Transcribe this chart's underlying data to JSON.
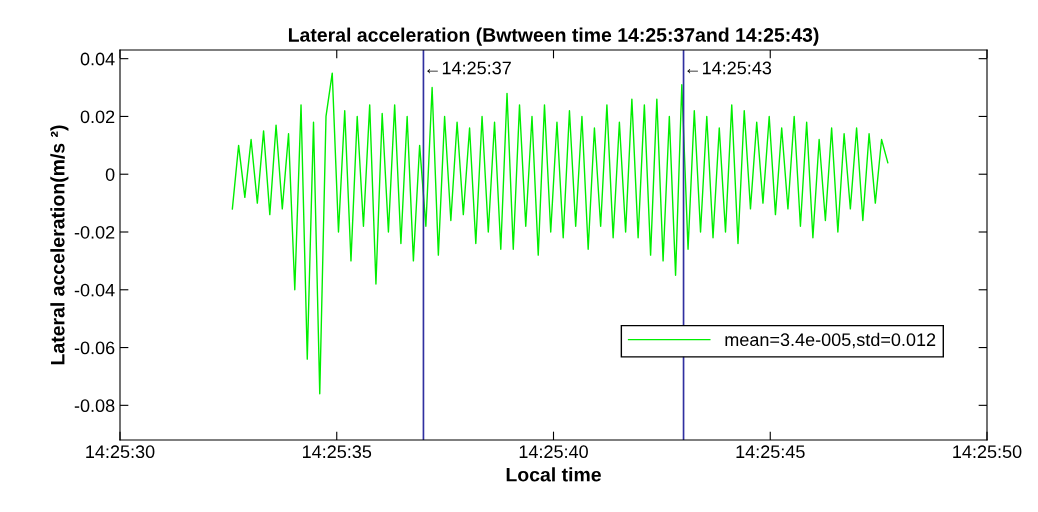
{
  "chart_data": {
    "type": "line",
    "title": "Lateral acceleration (Bwtween time 14:25:37and 14:25:43)",
    "xlabel": "Local time",
    "ylabel": "Lateral acceleration(m/s ²)",
    "x": [
      14.42572,
      14.42576,
      14.4258,
      14.42584,
      14.42588,
      14.42592,
      14.42596,
      14.426,
      14.42604,
      14.42608,
      14.42612,
      14.42616,
      14.4262,
      14.42624,
      14.42628,
      14.42632,
      14.42636,
      14.4264,
      14.42644,
      14.42648,
      14.42652,
      14.42656,
      14.4266,
      14.42664,
      14.42668,
      14.42672,
      14.42676,
      14.4268,
      14.42684,
      14.42688,
      14.42692,
      14.42696,
      14.427,
      14.42704,
      14.42708,
      14.42712,
      14.42716,
      14.4272,
      14.42724,
      14.42728,
      14.42732,
      14.42736,
      14.4274,
      14.42744,
      14.42748,
      14.42752,
      14.42756,
      14.4276,
      14.42764,
      14.42768,
      14.42772,
      14.42776,
      14.4278,
      14.42784,
      14.42788,
      14.42792,
      14.42796,
      14.428,
      14.42804,
      14.42808,
      14.42812,
      14.42816,
      14.4282,
      14.42824,
      14.42828,
      14.42832,
      14.42836,
      14.4284,
      14.42844,
      14.42848,
      14.42852,
      14.42856,
      14.4286,
      14.42864,
      14.42868,
      14.42872,
      14.42876,
      14.4288,
      14.42884,
      14.42888,
      14.42892,
      14.42896,
      14.429,
      14.42904,
      14.42908,
      14.42912,
      14.42916,
      14.4292,
      14.42924,
      14.42928,
      14.42932,
      14.42936,
      14.4294,
      14.42944,
      14.42948,
      14.42952,
      14.42956,
      14.4296,
      14.42964,
      14.42968,
      14.42972,
      14.42976,
      14.4298,
      14.42984,
      14.42988,
      14.42992
    ],
    "series": [
      {
        "name": "mean=3.4e-005,std=0.012",
        "color": "#00ee00",
        "values": [
          -0.012,
          0.01,
          -0.008,
          0.012,
          -0.01,
          0.015,
          -0.014,
          0.017,
          -0.012,
          0.014,
          -0.04,
          0.024,
          -0.064,
          0.018,
          -0.076,
          0.02,
          0.035,
          -0.02,
          0.022,
          -0.03,
          0.02,
          -0.018,
          0.024,
          -0.038,
          0.021,
          -0.02,
          0.024,
          -0.024,
          0.02,
          -0.03,
          0.01,
          -0.018,
          0.03,
          -0.028,
          0.02,
          -0.016,
          0.018,
          -0.014,
          0.016,
          -0.024,
          0.02,
          -0.02,
          0.018,
          -0.026,
          0.028,
          -0.026,
          0.024,
          -0.018,
          0.02,
          -0.028,
          0.024,
          -0.02,
          0.018,
          -0.022,
          0.022,
          -0.018,
          0.02,
          -0.026,
          0.016,
          -0.018,
          0.024,
          -0.022,
          0.018,
          -0.02,
          0.026,
          -0.022,
          0.024,
          -0.028,
          0.026,
          -0.03,
          0.02,
          -0.035,
          0.031,
          -0.026,
          0.022,
          -0.02,
          0.02,
          -0.022,
          0.016,
          -0.02,
          0.024,
          -0.024,
          0.022,
          -0.012,
          0.018,
          -0.01,
          0.02,
          -0.014,
          0.016,
          -0.012,
          0.02,
          -0.018,
          0.018,
          -0.022,
          0.012,
          -0.016,
          0.016,
          -0.02,
          0.014,
          -0.012,
          0.016,
          -0.016,
          0.014,
          -0.01,
          0.012,
          0.004
        ]
      }
    ],
    "xlim": [
      14.425,
      14.4305556
    ],
    "xticks": [
      {
        "value": 14.425,
        "label": "14:25:30"
      },
      {
        "value": 14.4263889,
        "label": "14:25:35"
      },
      {
        "value": 14.4277778,
        "label": "14:25:40"
      },
      {
        "value": 14.4291667,
        "label": "14:25:45"
      },
      {
        "value": 14.4305556,
        "label": "14:25:50"
      }
    ],
    "ylim": [
      -0.092,
      0.043
    ],
    "yticks": [
      -0.08,
      -0.06,
      -0.04,
      -0.02,
      0,
      0.02,
      0.04
    ],
    "ref_lines": [
      {
        "axis": "x",
        "value": 14.4269444,
        "label": "←14:25:37",
        "color": "#3030a0"
      },
      {
        "axis": "x",
        "value": 14.4286111,
        "label": "←14:25:43",
        "color": "#3030a0"
      }
    ],
    "grid": false,
    "legend": "bottom right",
    "marker": "none",
    "line_style": "solid"
  }
}
